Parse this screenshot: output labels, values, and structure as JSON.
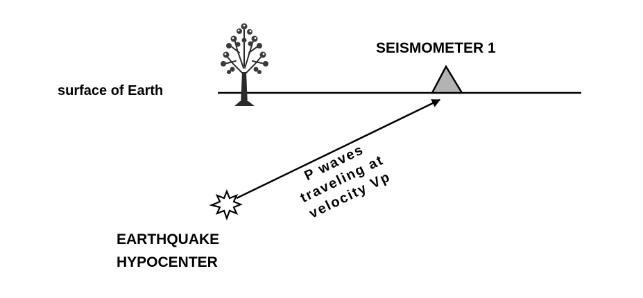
{
  "labels": {
    "surface": "surface of Earth",
    "seismometer": "SEISMOMETER 1",
    "hypocenter_line1": "EARTHQUAKE",
    "hypocenter_line2": "HYPOCENTER",
    "wave_line1": "P waves",
    "wave_line2": "traveling at",
    "wave_line3": "velocity Vp"
  },
  "icons": {
    "tree": "tree-icon",
    "seismometer": "triangle-seismometer-icon",
    "hypocenter": "starburst-icon"
  },
  "colors": {
    "ink": "#000000",
    "seismometer_fill": "#b3b3b3",
    "tree": "#333333"
  }
}
